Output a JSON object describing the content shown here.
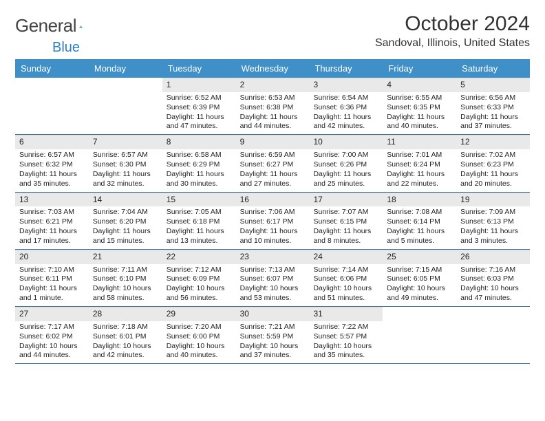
{
  "brand": {
    "part1": "General",
    "part2": "Blue"
  },
  "title": "October 2024",
  "location": "Sandoval, Illinois, United States",
  "colors": {
    "header_bg": "#3f8fc9",
    "header_fg": "#ffffff",
    "daynum_bg": "#e9e9e9",
    "rule": "#3f73a6",
    "brand_blue": "#2f7fc2"
  },
  "fonts": {
    "title_pt": 30,
    "location_pt": 16,
    "header_pt": 13,
    "body_pt": 10.5
  },
  "day_headers": [
    "Sunday",
    "Monday",
    "Tuesday",
    "Wednesday",
    "Thursday",
    "Friday",
    "Saturday"
  ],
  "weeks": [
    [
      null,
      null,
      {
        "n": "1",
        "sunrise": "Sunrise: 6:52 AM",
        "sunset": "Sunset: 6:39 PM",
        "daylight": "Daylight: 11 hours and 47 minutes."
      },
      {
        "n": "2",
        "sunrise": "Sunrise: 6:53 AM",
        "sunset": "Sunset: 6:38 PM",
        "daylight": "Daylight: 11 hours and 44 minutes."
      },
      {
        "n": "3",
        "sunrise": "Sunrise: 6:54 AM",
        "sunset": "Sunset: 6:36 PM",
        "daylight": "Daylight: 11 hours and 42 minutes."
      },
      {
        "n": "4",
        "sunrise": "Sunrise: 6:55 AM",
        "sunset": "Sunset: 6:35 PM",
        "daylight": "Daylight: 11 hours and 40 minutes."
      },
      {
        "n": "5",
        "sunrise": "Sunrise: 6:56 AM",
        "sunset": "Sunset: 6:33 PM",
        "daylight": "Daylight: 11 hours and 37 minutes."
      }
    ],
    [
      {
        "n": "6",
        "sunrise": "Sunrise: 6:57 AM",
        "sunset": "Sunset: 6:32 PM",
        "daylight": "Daylight: 11 hours and 35 minutes."
      },
      {
        "n": "7",
        "sunrise": "Sunrise: 6:57 AM",
        "sunset": "Sunset: 6:30 PM",
        "daylight": "Daylight: 11 hours and 32 minutes."
      },
      {
        "n": "8",
        "sunrise": "Sunrise: 6:58 AM",
        "sunset": "Sunset: 6:29 PM",
        "daylight": "Daylight: 11 hours and 30 minutes."
      },
      {
        "n": "9",
        "sunrise": "Sunrise: 6:59 AM",
        "sunset": "Sunset: 6:27 PM",
        "daylight": "Daylight: 11 hours and 27 minutes."
      },
      {
        "n": "10",
        "sunrise": "Sunrise: 7:00 AM",
        "sunset": "Sunset: 6:26 PM",
        "daylight": "Daylight: 11 hours and 25 minutes."
      },
      {
        "n": "11",
        "sunrise": "Sunrise: 7:01 AM",
        "sunset": "Sunset: 6:24 PM",
        "daylight": "Daylight: 11 hours and 22 minutes."
      },
      {
        "n": "12",
        "sunrise": "Sunrise: 7:02 AM",
        "sunset": "Sunset: 6:23 PM",
        "daylight": "Daylight: 11 hours and 20 minutes."
      }
    ],
    [
      {
        "n": "13",
        "sunrise": "Sunrise: 7:03 AM",
        "sunset": "Sunset: 6:21 PM",
        "daylight": "Daylight: 11 hours and 17 minutes."
      },
      {
        "n": "14",
        "sunrise": "Sunrise: 7:04 AM",
        "sunset": "Sunset: 6:20 PM",
        "daylight": "Daylight: 11 hours and 15 minutes."
      },
      {
        "n": "15",
        "sunrise": "Sunrise: 7:05 AM",
        "sunset": "Sunset: 6:18 PM",
        "daylight": "Daylight: 11 hours and 13 minutes."
      },
      {
        "n": "16",
        "sunrise": "Sunrise: 7:06 AM",
        "sunset": "Sunset: 6:17 PM",
        "daylight": "Daylight: 11 hours and 10 minutes."
      },
      {
        "n": "17",
        "sunrise": "Sunrise: 7:07 AM",
        "sunset": "Sunset: 6:15 PM",
        "daylight": "Daylight: 11 hours and 8 minutes."
      },
      {
        "n": "18",
        "sunrise": "Sunrise: 7:08 AM",
        "sunset": "Sunset: 6:14 PM",
        "daylight": "Daylight: 11 hours and 5 minutes."
      },
      {
        "n": "19",
        "sunrise": "Sunrise: 7:09 AM",
        "sunset": "Sunset: 6:13 PM",
        "daylight": "Daylight: 11 hours and 3 minutes."
      }
    ],
    [
      {
        "n": "20",
        "sunrise": "Sunrise: 7:10 AM",
        "sunset": "Sunset: 6:11 PM",
        "daylight": "Daylight: 11 hours and 1 minute."
      },
      {
        "n": "21",
        "sunrise": "Sunrise: 7:11 AM",
        "sunset": "Sunset: 6:10 PM",
        "daylight": "Daylight: 10 hours and 58 minutes."
      },
      {
        "n": "22",
        "sunrise": "Sunrise: 7:12 AM",
        "sunset": "Sunset: 6:09 PM",
        "daylight": "Daylight: 10 hours and 56 minutes."
      },
      {
        "n": "23",
        "sunrise": "Sunrise: 7:13 AM",
        "sunset": "Sunset: 6:07 PM",
        "daylight": "Daylight: 10 hours and 53 minutes."
      },
      {
        "n": "24",
        "sunrise": "Sunrise: 7:14 AM",
        "sunset": "Sunset: 6:06 PM",
        "daylight": "Daylight: 10 hours and 51 minutes."
      },
      {
        "n": "25",
        "sunrise": "Sunrise: 7:15 AM",
        "sunset": "Sunset: 6:05 PM",
        "daylight": "Daylight: 10 hours and 49 minutes."
      },
      {
        "n": "26",
        "sunrise": "Sunrise: 7:16 AM",
        "sunset": "Sunset: 6:03 PM",
        "daylight": "Daylight: 10 hours and 47 minutes."
      }
    ],
    [
      {
        "n": "27",
        "sunrise": "Sunrise: 7:17 AM",
        "sunset": "Sunset: 6:02 PM",
        "daylight": "Daylight: 10 hours and 44 minutes."
      },
      {
        "n": "28",
        "sunrise": "Sunrise: 7:18 AM",
        "sunset": "Sunset: 6:01 PM",
        "daylight": "Daylight: 10 hours and 42 minutes."
      },
      {
        "n": "29",
        "sunrise": "Sunrise: 7:20 AM",
        "sunset": "Sunset: 6:00 PM",
        "daylight": "Daylight: 10 hours and 40 minutes."
      },
      {
        "n": "30",
        "sunrise": "Sunrise: 7:21 AM",
        "sunset": "Sunset: 5:59 PM",
        "daylight": "Daylight: 10 hours and 37 minutes."
      },
      {
        "n": "31",
        "sunrise": "Sunrise: 7:22 AM",
        "sunset": "Sunset: 5:57 PM",
        "daylight": "Daylight: 10 hours and 35 minutes."
      },
      null,
      null
    ]
  ]
}
